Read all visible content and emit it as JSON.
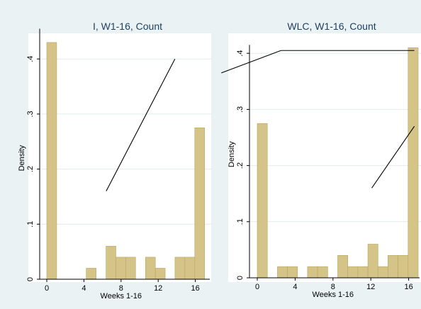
{
  "chart_data": [
    {
      "type": "bar",
      "title": "I, W1-16, Count",
      "xlabel": "Weeks 1-16",
      "ylabel": "Density",
      "xlim": [
        -0.5,
        16.6
      ],
      "ylim": [
        0,
        0.46
      ],
      "xticks": [
        0,
        4,
        8,
        12,
        16
      ],
      "yticks": [
        0,
        0.1,
        0.2,
        0.3,
        0.4
      ],
      "ytick_labels": [
        "0",
        ".1",
        ".2",
        ".3",
        ".4"
      ],
      "bin_width": 1.0625,
      "bins": [
        {
          "x": 0.0,
          "density": 0.43
        },
        {
          "x": 4.25,
          "density": 0.02
        },
        {
          "x": 6.38,
          "density": 0.06
        },
        {
          "x": 7.44,
          "density": 0.04
        },
        {
          "x": 8.5,
          "density": 0.04
        },
        {
          "x": 10.63,
          "density": 0.04
        },
        {
          "x": 11.69,
          "density": 0.02
        },
        {
          "x": 13.81,
          "density": 0.04
        },
        {
          "x": 14.88,
          "density": 0.04
        },
        {
          "x": 15.94,
          "density": 0.275
        }
      ],
      "line_segments": [
        [
          [
            6.4,
            0.16
          ],
          [
            13.8,
            0.4
          ]
        ]
      ]
    },
    {
      "type": "bar",
      "title": "WLC, W1-16, Count",
      "xlabel": "Weeks 1-16",
      "ylabel": "Density",
      "xlim": [
        -0.5,
        16.6
      ],
      "ylim": [
        0,
        0.42
      ],
      "xticks": [
        0,
        4,
        8,
        12,
        16
      ],
      "yticks": [
        0,
        0.1,
        0.2,
        0.3,
        0.4
      ],
      "ytick_labels": [
        "0",
        ".1",
        ".2",
        ".3",
        ".4"
      ],
      "bin_width": 1.0625,
      "bins": [
        {
          "x": 0.0,
          "density": 0.275
        },
        {
          "x": 2.13,
          "density": 0.02
        },
        {
          "x": 3.19,
          "density": 0.02
        },
        {
          "x": 5.31,
          "density": 0.02
        },
        {
          "x": 6.38,
          "density": 0.02
        },
        {
          "x": 8.5,
          "density": 0.04
        },
        {
          "x": 9.56,
          "density": 0.02
        },
        {
          "x": 10.63,
          "density": 0.02
        },
        {
          "x": 11.69,
          "density": 0.06
        },
        {
          "x": 12.75,
          "density": 0.02
        },
        {
          "x": 13.81,
          "density": 0.04
        },
        {
          "x": 14.88,
          "density": 0.04
        },
        {
          "x": 15.94,
          "density": 0.41
        }
      ],
      "line_segments": [
        [
          [
            -3.8,
            0.365
          ],
          [
            2.5,
            0.405
          ],
          [
            16.6,
            0.405
          ]
        ],
        [
          [
            12.1,
            0.16
          ],
          [
            16.6,
            0.27
          ]
        ]
      ]
    }
  ],
  "colors": {
    "background": "#eaf2f3",
    "plot_area": "#ffffff",
    "bar_fill": "#d4c487",
    "bar_stroke": "#b9a662",
    "gridline": "#e4ecee",
    "axis": "#000000",
    "line": "#000000"
  }
}
